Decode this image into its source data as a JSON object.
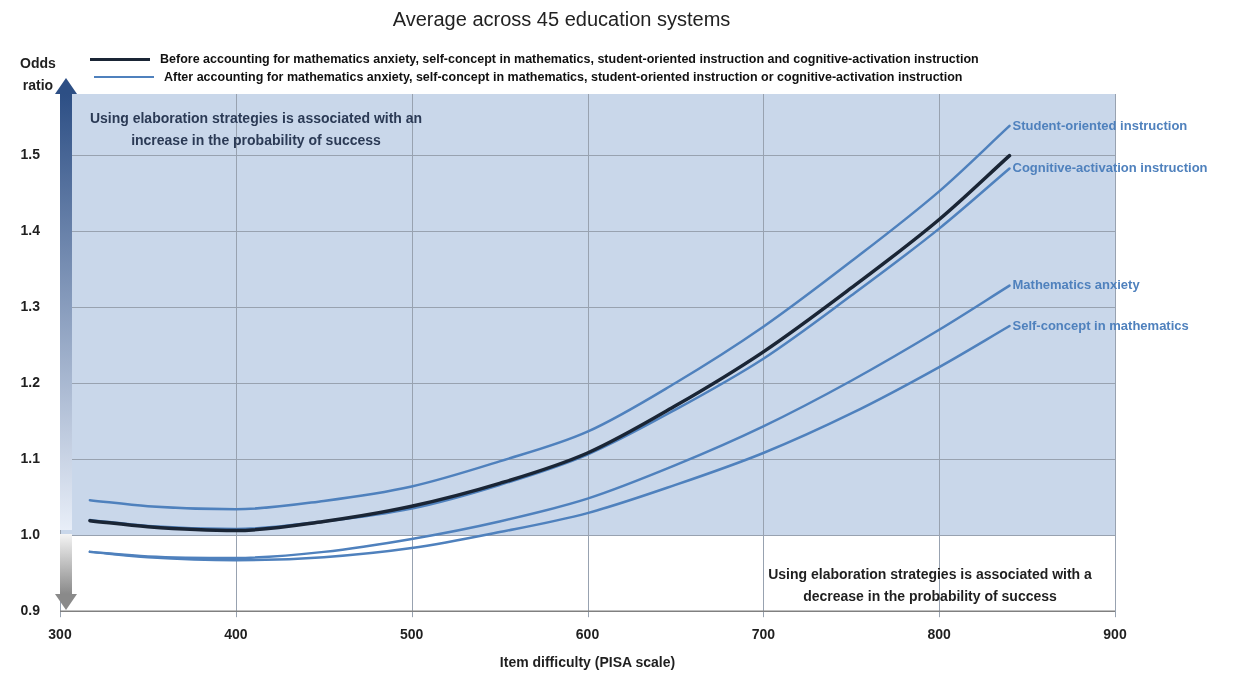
{
  "chart_data": {
    "type": "line",
    "title": "Average across 45 education systems",
    "xlabel": "Item difficulty (PISA scale)",
    "ylabel": "Odds ratio",
    "x": [
      317,
      350,
      400,
      450,
      500,
      550,
      600,
      650,
      700,
      750,
      800,
      840
    ],
    "series": [
      {
        "name": "Before accounting for mathematics anxiety, self-concept in mathematics, student-oriented instruction and cognitive-activation instruction",
        "color": "#1a2535",
        "values": [
          1.019,
          1.011,
          1.006,
          1.018,
          1.038,
          1.068,
          1.108,
          1.17,
          1.241,
          1.325,
          1.415,
          1.499
        ]
      },
      {
        "name": "Student-oriented instruction",
        "color": "#4f81bd",
        "values": [
          1.046,
          1.038,
          1.034,
          1.045,
          1.064,
          1.097,
          1.136,
          1.2,
          1.274,
          1.36,
          1.452,
          1.538
        ]
      },
      {
        "name": "Cognitive-activation instruction",
        "color": "#4f81bd",
        "values": [
          1.02,
          1.012,
          1.008,
          1.018,
          1.035,
          1.066,
          1.106,
          1.165,
          1.232,
          1.315,
          1.403,
          1.482
        ]
      },
      {
        "name": "Mathematics anxiety",
        "color": "#4f81bd",
        "values": [
          0.978,
          0.972,
          0.97,
          0.978,
          0.995,
          1.018,
          1.048,
          1.092,
          1.143,
          1.203,
          1.27,
          1.328
        ]
      },
      {
        "name": "Self-concept in mathematics",
        "color": "#4f81bd",
        "values": [
          0.978,
          0.971,
          0.967,
          0.971,
          0.983,
          1.004,
          1.029,
          1.066,
          1.108,
          1.16,
          1.221,
          1.275
        ]
      }
    ],
    "annotations": [
      "After accounting for mathematics anxiety, self-concept in mathematics, student-oriented instruction or cognitive-activation instruction",
      "Using elaboration strategies is associated with an increase in the probability of success",
      "Using elaboration strategies is associated with a decrease in the probability of success"
    ],
    "bands": [
      {
        "axis": "y",
        "from": 1.0,
        "to": 1.58,
        "color": "#c9d7ea"
      }
    ],
    "xlim": [
      300,
      900
    ],
    "xticks": [
      300,
      400,
      500,
      600,
      700,
      800,
      900
    ],
    "ylim": [
      0.9,
      1.58
    ],
    "yticks": [
      0.9,
      {
        "value": 1.0,
        "label": "1.0"
      },
      1.1,
      1.2,
      1.3,
      1.4,
      1.5
    ],
    "grid": true,
    "legend": "top",
    "marker": "none",
    "line_style": "solid"
  }
}
